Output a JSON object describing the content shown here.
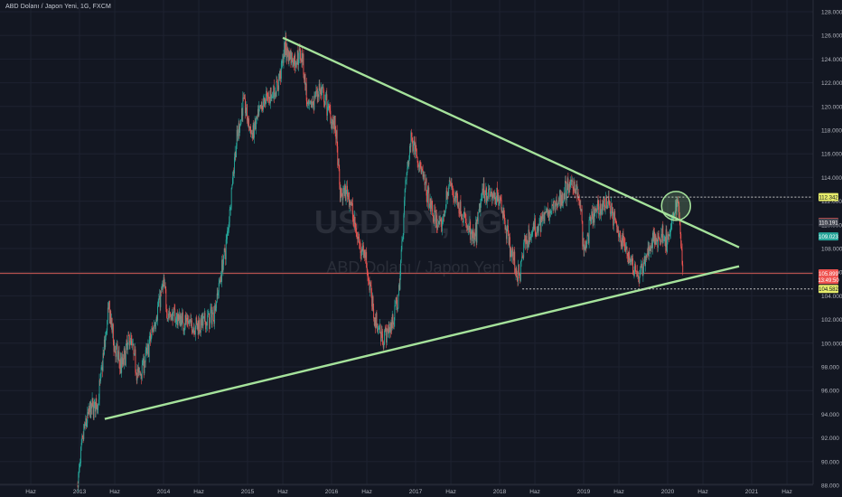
{
  "header": {
    "title": "ABD Dolanı / Japon Yeni, 1G, FXCM"
  },
  "watermark": {
    "symbol": "USDJPY, 1G",
    "name": "ABD Dolanı / Japon Yeni"
  },
  "colors": {
    "background": "#131722",
    "grid": "#1e2230",
    "up": "#26a69a",
    "down": "#ef5350",
    "trendline": "#a5e29b",
    "hline": "#b2504e",
    "dotted": "#c8c8c8",
    "label_yellow": "#e6ec6b",
    "label_red": "#ef5350",
    "label_green": "#26a69a",
    "label_gray": "#434651"
  },
  "chart_data": {
    "type": "candlestick",
    "symbol": "USDJPY",
    "timeframe": "1G",
    "source": "FXCM",
    "ylim": [
      88,
      128
    ],
    "xlim": [
      2012.5,
      2021.5
    ],
    "y_ticks": [
      "88.000",
      "90.000",
      "92.000",
      "94.000",
      "96.000",
      "98.000",
      "100.000",
      "102.000",
      "104.000",
      "106.000",
      "108.000",
      "110.000",
      "112.000",
      "114.000",
      "116.000",
      "118.000",
      "120.000",
      "122.000",
      "124.000",
      "126.000",
      "128.000"
    ],
    "x_ticks": [
      {
        "label": "Haz",
        "t": 2012.42
      },
      {
        "label": "2013",
        "t": 2013.0
      },
      {
        "label": "Haz",
        "t": 2013.42
      },
      {
        "label": "2014",
        "t": 2014.0
      },
      {
        "label": "Haz",
        "t": 2014.42
      },
      {
        "label": "2015",
        "t": 2015.0
      },
      {
        "label": "Haz",
        "t": 2015.42
      },
      {
        "label": "2016",
        "t": 2016.0
      },
      {
        "label": "Haz",
        "t": 2016.42
      },
      {
        "label": "2017",
        "t": 2017.0
      },
      {
        "label": "Haz",
        "t": 2017.42
      },
      {
        "label": "2018",
        "t": 2018.0
      },
      {
        "label": "Haz",
        "t": 2018.42
      },
      {
        "label": "2019",
        "t": 2019.0
      },
      {
        "label": "Haz",
        "t": 2019.42
      },
      {
        "label": "2020",
        "t": 2020.0
      },
      {
        "label": "Haz",
        "t": 2020.42
      },
      {
        "label": "2021",
        "t": 2021.0
      },
      {
        "label": "Haz",
        "t": 2021.42
      }
    ],
    "price_path": [
      [
        2012.98,
        88.2
      ],
      [
        2013.05,
        92.5
      ],
      [
        2013.12,
        94.3
      ],
      [
        2013.22,
        95.0
      ],
      [
        2013.35,
        103.0
      ],
      [
        2013.42,
        99.5
      ],
      [
        2013.5,
        98.0
      ],
      [
        2013.6,
        100.5
      ],
      [
        2013.7,
        97.2
      ],
      [
        2013.8,
        99.0
      ],
      [
        2013.95,
        103.5
      ],
      [
        2014.0,
        105.0
      ],
      [
        2014.05,
        102.5
      ],
      [
        2014.2,
        102.0
      ],
      [
        2014.35,
        101.5
      ],
      [
        2014.5,
        101.8
      ],
      [
        2014.6,
        102.5
      ],
      [
        2014.65,
        104.5
      ],
      [
        2014.75,
        108.5
      ],
      [
        2014.85,
        116.0
      ],
      [
        2014.95,
        120.5
      ],
      [
        2015.05,
        117.5
      ],
      [
        2015.2,
        120.5
      ],
      [
        2015.35,
        121.5
      ],
      [
        2015.45,
        125.0
      ],
      [
        2015.55,
        123.8
      ],
      [
        2015.65,
        124.5
      ],
      [
        2015.72,
        119.5
      ],
      [
        2015.85,
        121.5
      ],
      [
        2015.95,
        120.0
      ],
      [
        2016.05,
        118.0
      ],
      [
        2016.1,
        112.5
      ],
      [
        2016.2,
        112.8
      ],
      [
        2016.3,
        109.0
      ],
      [
        2016.4,
        107.5
      ],
      [
        2016.5,
        102.5
      ],
      [
        2016.6,
        100.5
      ],
      [
        2016.7,
        101.2
      ],
      [
        2016.8,
        104.0
      ],
      [
        2016.88,
        113.5
      ],
      [
        2016.95,
        117.5
      ],
      [
        2017.0,
        116.5
      ],
      [
        2017.1,
        113.5
      ],
      [
        2017.2,
        111.0
      ],
      [
        2017.3,
        109.5
      ],
      [
        2017.4,
        113.5
      ],
      [
        2017.5,
        112.0
      ],
      [
        2017.6,
        110.0
      ],
      [
        2017.7,
        108.5
      ],
      [
        2017.8,
        113.0
      ],
      [
        2017.9,
        112.5
      ],
      [
        2017.95,
        112.0
      ],
      [
        2018.0,
        112.5
      ],
      [
        2018.1,
        109.0
      ],
      [
        2018.18,
        106.5
      ],
      [
        2018.23,
        105.5
      ],
      [
        2018.3,
        108.5
      ],
      [
        2018.4,
        109.5
      ],
      [
        2018.5,
        110.5
      ],
      [
        2018.6,
        111.0
      ],
      [
        2018.7,
        112.0
      ],
      [
        2018.8,
        113.0
      ],
      [
        2018.9,
        113.5
      ],
      [
        2018.97,
        111.0
      ],
      [
        2019.0,
        107.5
      ],
      [
        2019.1,
        110.5
      ],
      [
        2019.2,
        111.5
      ],
      [
        2019.3,
        112.0
      ],
      [
        2019.4,
        109.5
      ],
      [
        2019.5,
        108.0
      ],
      [
        2019.6,
        106.5
      ],
      [
        2019.66,
        105.5
      ],
      [
        2019.75,
        107.5
      ],
      [
        2019.85,
        108.8
      ],
      [
        2019.95,
        109.2
      ],
      [
        2020.0,
        108.5
      ],
      [
        2020.05,
        110.0
      ],
      [
        2020.12,
        112.2
      ],
      [
        2020.15,
        109.8
      ],
      [
        2020.18,
        106.0
      ]
    ],
    "triangle_upper": [
      [
        2015.42,
        125.8
      ],
      [
        2020.85,
        108.1
      ]
    ],
    "triangle_lower": [
      [
        2013.3,
        93.6
      ],
      [
        2020.85,
        106.5
      ]
    ],
    "resistance": {
      "from": 2018.8,
      "to": 2021.0,
      "value": 112.342
    },
    "support": {
      "from": 2018.27,
      "to": 2021.0,
      "value": 104.582
    },
    "horizontal_line": 105.899,
    "circle": {
      "t": 2020.1,
      "p": 111.6
    },
    "price_labels": [
      {
        "text": "112.342",
        "value": 112.342,
        "color": "yellow"
      },
      {
        "text": "110.238",
        "value": 110.238,
        "color": "red"
      },
      {
        "text": "110.191",
        "value": 110.191,
        "color": "gray"
      },
      {
        "text": "109.023",
        "value": 109.023,
        "color": "green"
      },
      {
        "text": "105.899",
        "value": 105.899,
        "color": "red"
      },
      {
        "text": "13:49:50",
        "value": 105.35,
        "color": "red"
      },
      {
        "text": "104.582",
        "value": 104.582,
        "color": "yellow"
      }
    ]
  }
}
